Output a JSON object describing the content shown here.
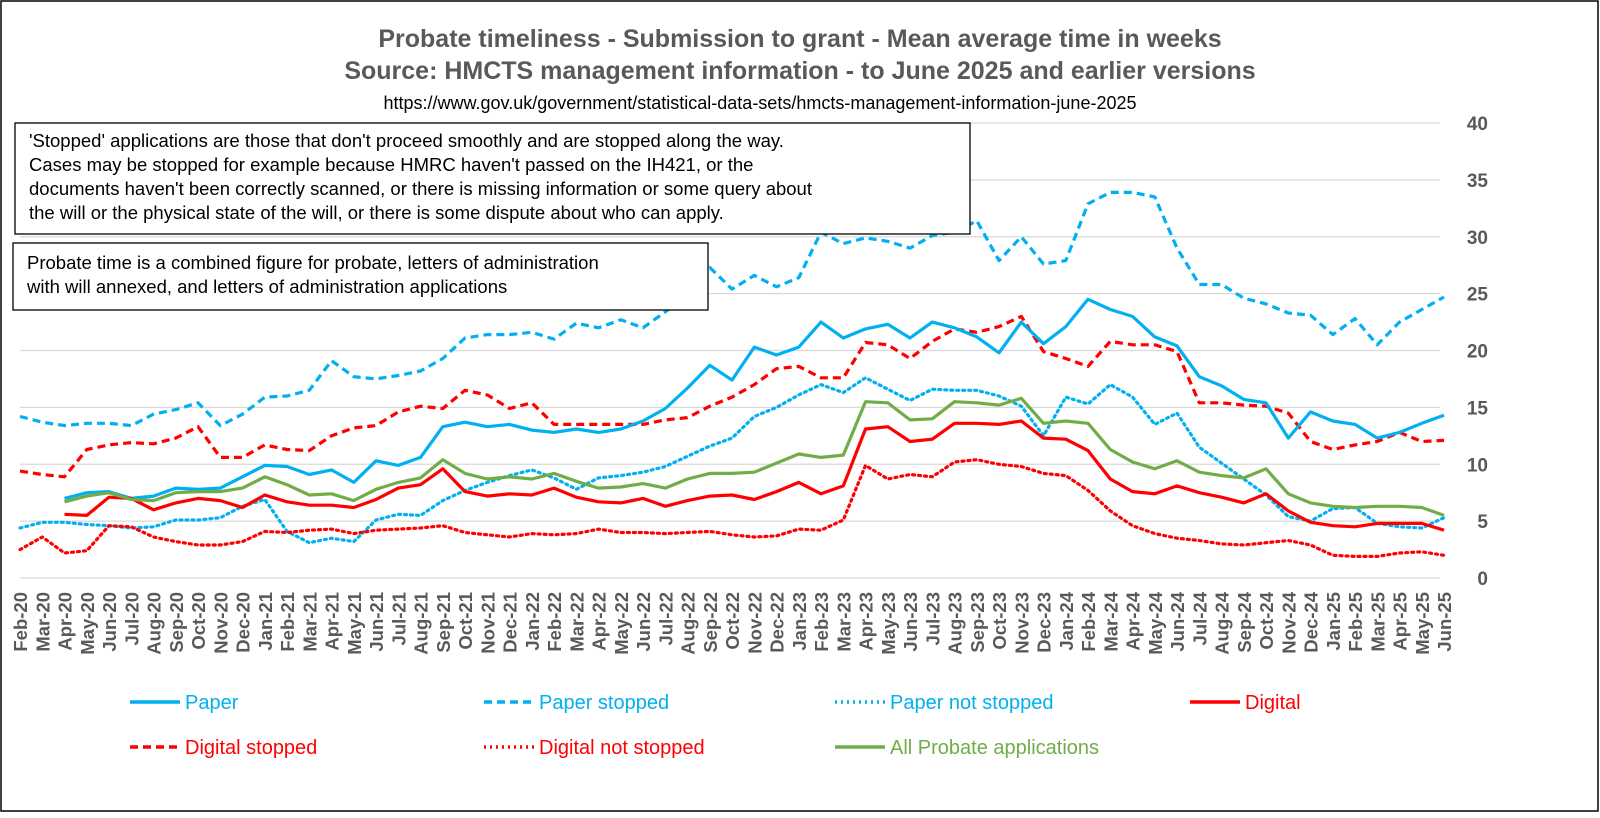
{
  "chart_data": {
    "type": "line",
    "title": "Probate timeliness - Submission to grant - Mean average time in weeks",
    "subtitle": "Source: HMCTS management information - to June 2025 and earlier versions",
    "source_url": "https://www.gov.uk/government/statistical-data-sets/hmcts-management-information-june-2025",
    "notes": [
      [
        "'Stopped' applications are those that don't proceed smoothly and are stopped along the way.",
        "Cases may be stopped for example because HMRC haven't passed on the IH421, or the",
        "documents haven't been correctly scanned, or there is missing information or some query about",
        "the will or the physical state of the will, or there is some dispute about who can apply."
      ],
      [
        "Probate time is a combined figure for probate, letters of administration",
        "with will annexed, and letters of administration applications"
      ]
    ],
    "ylim": [
      0,
      40
    ],
    "yticks": [
      0,
      5,
      10,
      15,
      20,
      25,
      30,
      35,
      40
    ],
    "grid": true,
    "y_axis_side": "right",
    "legend_position": "bottom",
    "categories": [
      "Feb-20",
      "Mar-20",
      "Apr-20",
      "May-20",
      "Jun-20",
      "Jul-20",
      "Aug-20",
      "Sep-20",
      "Oct-20",
      "Nov-20",
      "Dec-20",
      "Jan-21",
      "Feb-21",
      "Mar-21",
      "Apr-21",
      "May-21",
      "Jun-21",
      "Jul-21",
      "Aug-21",
      "Sep-21",
      "Oct-21",
      "Nov-21",
      "Dec-21",
      "Jan-22",
      "Feb-22",
      "Mar-22",
      "Apr-22",
      "May-22",
      "Jun-22",
      "Jul-22",
      "Aug-22",
      "Sep-22",
      "Oct-22",
      "Nov-22",
      "Dec-22",
      "Jan-23",
      "Feb-23",
      "Mar-23",
      "Apr-23",
      "May-23",
      "Jun-23",
      "Jul-23",
      "Aug-23",
      "Sep-23",
      "Oct-23",
      "Nov-23",
      "Dec-23",
      "Jan-24",
      "Feb-24",
      "Mar-24",
      "Apr-24",
      "May-24",
      "Jun-24",
      "Jul-24",
      "Aug-24",
      "Sep-24",
      "Oct-24",
      "Nov-24",
      "Dec-24",
      "Jan-25",
      "Feb-25",
      "Mar-25",
      "Apr-25",
      "May-25",
      "Jun-25"
    ],
    "series": [
      {
        "name": "Paper",
        "color": "#00B0F0",
        "dash": "solid",
        "values": [
          null,
          null,
          7.0,
          7.5,
          7.6,
          7.0,
          7.2,
          7.9,
          7.8,
          7.9,
          8.9,
          9.9,
          9.8,
          9.1,
          9.5,
          8.4,
          10.3,
          9.9,
          10.6,
          13.3,
          13.7,
          13.3,
          13.5,
          13.0,
          12.8,
          13.1,
          12.8,
          13.1,
          13.8,
          14.9,
          16.7,
          18.7,
          17.4,
          20.3,
          19.6,
          20.3,
          22.5,
          21.1,
          21.9,
          22.3,
          21.1,
          22.5,
          22.0,
          21.2,
          19.8,
          22.5,
          20.6,
          22.1,
          24.5,
          23.6,
          23.0,
          21.2,
          20.4,
          17.7,
          16.9,
          15.7,
          15.4,
          12.3,
          14.6,
          13.8,
          13.5,
          12.3,
          12.8,
          13.6,
          14.3
        ]
      },
      {
        "name": "Paper stopped",
        "color": "#00B0F0",
        "dash": "8,5",
        "values": [
          14.2,
          13.7,
          13.4,
          13.6,
          13.6,
          13.4,
          14.4,
          14.8,
          15.4,
          13.4,
          14.4,
          15.9,
          16.0,
          16.5,
          19.1,
          17.7,
          17.5,
          17.8,
          18.2,
          19.3,
          21.1,
          21.4,
          21.4,
          21.6,
          21.0,
          22.4,
          22.0,
          22.7,
          22.0,
          23.4,
          24.8,
          27.3,
          25.4,
          26.6,
          25.6,
          26.4,
          30.4,
          29.4,
          29.9,
          29.6,
          29.0,
          30.1,
          30.4,
          31.4,
          27.9,
          30.0,
          27.6,
          27.9,
          32.9,
          33.9,
          33.9,
          33.5,
          29.0,
          25.8,
          25.8,
          24.6,
          24.1,
          23.3,
          23.1,
          21.4,
          22.8,
          20.5,
          22.5,
          23.6,
          24.7
        ]
      },
      {
        "name": "Paper not stopped",
        "color": "#00B0F0",
        "dash": "2,4",
        "values": [
          4.4,
          4.9,
          4.9,
          4.7,
          4.6,
          4.4,
          4.5,
          5.1,
          5.1,
          5.3,
          6.3,
          6.9,
          4.1,
          3.1,
          3.5,
          3.2,
          5.1,
          5.6,
          5.5,
          6.8,
          7.7,
          8.4,
          9.0,
          9.5,
          8.8,
          7.8,
          8.8,
          9.0,
          9.3,
          9.8,
          10.7,
          11.6,
          12.3,
          14.2,
          15.0,
          16.1,
          17.0,
          16.3,
          17.6,
          16.6,
          15.6,
          16.6,
          16.5,
          16.5,
          16.0,
          15.1,
          12.5,
          15.9,
          15.3,
          17.0,
          15.9,
          13.5,
          14.5,
          11.5,
          10.1,
          8.7,
          7.3,
          5.4,
          5.0,
          6.1,
          6.2,
          4.8,
          4.5,
          4.4,
          5.3
        ]
      },
      {
        "name": "Digital",
        "color": "#FF0000",
        "dash": "solid",
        "values": [
          null,
          null,
          5.6,
          5.5,
          7.1,
          7.0,
          6.0,
          6.6,
          7.0,
          6.8,
          6.2,
          7.3,
          6.7,
          6.4,
          6.4,
          6.2,
          6.9,
          7.9,
          8.2,
          9.6,
          7.6,
          7.2,
          7.4,
          7.3,
          7.9,
          7.1,
          6.7,
          6.6,
          7.0,
          6.3,
          6.8,
          7.2,
          7.3,
          6.9,
          7.6,
          8.4,
          7.4,
          8.1,
          13.1,
          13.3,
          12.0,
          12.2,
          13.6,
          13.6,
          13.5,
          13.8,
          12.3,
          12.2,
          11.2,
          8.7,
          7.6,
          7.4,
          8.1,
          7.5,
          7.1,
          6.6,
          7.4,
          5.9,
          4.9,
          4.6,
          4.5,
          4.8,
          4.8,
          4.8,
          4.2
        ]
      },
      {
        "name": "Digital stopped",
        "color": "#FF0000",
        "dash": "8,5",
        "values": [
          9.4,
          9.1,
          8.9,
          11.3,
          11.7,
          11.9,
          11.8,
          12.3,
          13.3,
          10.6,
          10.6,
          11.7,
          11.3,
          11.2,
          12.5,
          13.2,
          13.4,
          14.6,
          15.1,
          14.9,
          16.5,
          16.1,
          14.9,
          15.4,
          13.5,
          13.5,
          13.5,
          13.5,
          13.5,
          13.9,
          14.1,
          15.1,
          15.9,
          17.0,
          18.4,
          18.6,
          17.6,
          17.6,
          20.7,
          20.5,
          19.3,
          20.8,
          21.9,
          21.6,
          22.1,
          23.0,
          19.9,
          19.3,
          18.6,
          20.8,
          20.5,
          20.5,
          19.9,
          15.4,
          15.4,
          15.2,
          15.1,
          14.5,
          12.0,
          11.3,
          11.7,
          12.0,
          12.8,
          12.0,
          12.1
        ]
      },
      {
        "name": "Digital not stopped",
        "color": "#FF0000",
        "dash": "2,4",
        "values": [
          2.5,
          3.6,
          2.2,
          2.4,
          4.6,
          4.5,
          3.6,
          3.2,
          2.9,
          2.9,
          3.2,
          4.1,
          4.0,
          4.2,
          4.3,
          3.9,
          4.2,
          4.3,
          4.4,
          4.6,
          4.0,
          3.8,
          3.6,
          3.9,
          3.8,
          3.9,
          4.3,
          4.0,
          4.0,
          3.9,
          4.0,
          4.1,
          3.8,
          3.6,
          3.7,
          4.3,
          4.2,
          5.1,
          9.9,
          8.7,
          9.1,
          8.9,
          10.2,
          10.4,
          10.0,
          9.8,
          9.2,
          9.0,
          7.7,
          5.9,
          4.6,
          3.9,
          3.5,
          3.3,
          3.0,
          2.9,
          3.1,
          3.3,
          2.9,
          2.0,
          1.9,
          1.9,
          2.2,
          2.3,
          2.0
        ]
      },
      {
        "name": "All Probate applications",
        "color": "#70AD47",
        "dash": "solid",
        "values": [
          null,
          null,
          6.7,
          7.2,
          7.5,
          6.9,
          6.8,
          7.5,
          7.6,
          7.6,
          7.9,
          8.9,
          8.2,
          7.3,
          7.4,
          6.8,
          7.8,
          8.4,
          8.8,
          10.4,
          9.2,
          8.7,
          8.9,
          8.7,
          9.2,
          8.5,
          7.9,
          8.0,
          8.3,
          7.9,
          8.7,
          9.2,
          9.2,
          9.3,
          10.1,
          10.9,
          10.6,
          10.8,
          15.5,
          15.4,
          13.9,
          14.0,
          15.5,
          15.4,
          15.2,
          15.8,
          13.6,
          13.8,
          13.6,
          11.3,
          10.2,
          9.6,
          10.3,
          9.3,
          9.0,
          8.8,
          9.6,
          7.4,
          6.6,
          6.3,
          6.2,
          6.3,
          6.3,
          6.2,
          5.5
        ]
      }
    ]
  },
  "legend": [
    {
      "label": "Paper",
      "color": "#00B0F0",
      "dash": "solid"
    },
    {
      "label": "Paper stopped",
      "color": "#00B0F0",
      "dash": "8,5"
    },
    {
      "label": "Paper not stopped",
      "color": "#00B0F0",
      "dash": "2,4"
    },
    {
      "label": "Digital",
      "color": "#FF0000",
      "dash": "solid"
    },
    {
      "label": "Digital stopped",
      "color": "#FF0000",
      "dash": "8,5"
    },
    {
      "label": "Digital not stopped",
      "color": "#FF0000",
      "dash": "2,4"
    },
    {
      "label": "All Probate applications",
      "color": "#70AD47",
      "dash": "solid"
    }
  ]
}
